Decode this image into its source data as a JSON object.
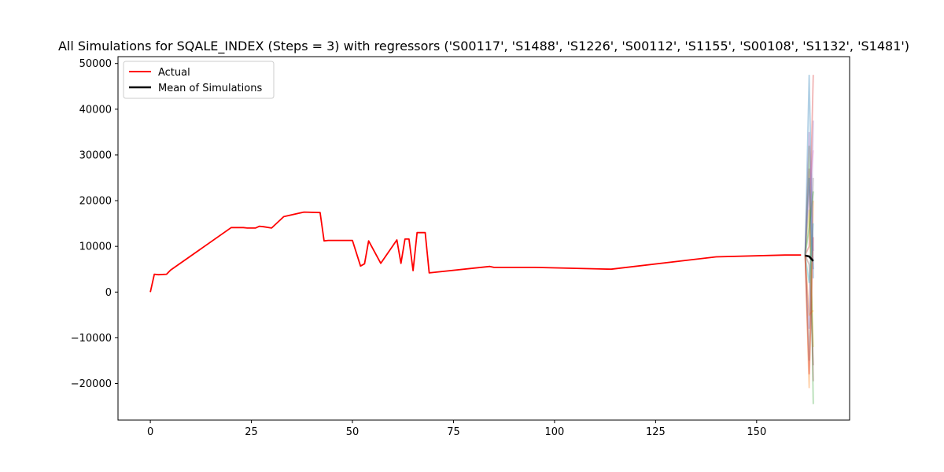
{
  "chart_data": {
    "type": "line",
    "title": "All Simulations for SQALE_INDEX (Steps = 3) with regressors ('S00117', 'S1488', 'S1226', 'S00112', 'S1155', 'S00108', 'S1132', 'S1481')",
    "xlabel": "",
    "ylabel": "",
    "xlim": [
      -8,
      173
    ],
    "ylim": [
      -28000,
      51500
    ],
    "x_ticks": [
      0,
      25,
      50,
      75,
      100,
      125,
      150
    ],
    "x_tick_labels": [
      "0",
      "25",
      "50",
      "75",
      "100",
      "125",
      "150"
    ],
    "y_ticks": [
      -20000,
      -10000,
      0,
      10000,
      20000,
      30000,
      40000,
      50000
    ],
    "y_tick_labels": [
      "−20000",
      "−10000",
      "0",
      "10000",
      "20000",
      "30000",
      "40000",
      "50000"
    ],
    "grid": false,
    "legend_placement": "top-left",
    "legend": [
      "Actual",
      "Mean of Simulations"
    ],
    "colors": {
      "actual": "#ff0000",
      "mean": "#000000",
      "simulations": [
        "#1f77b4",
        "#ff7f0e",
        "#2ca02c",
        "#d62728",
        "#9467bd",
        "#8c564b",
        "#e377c2",
        "#7f7f7f",
        "#bcbd22",
        "#17becf"
      ]
    },
    "series": [
      {
        "name": "Actual",
        "x": [
          0,
          1,
          2,
          4,
          5,
          20,
          23,
          24,
          26,
          27,
          28,
          30,
          33,
          38,
          42,
          43,
          44,
          50,
          52,
          53,
          54,
          57,
          61,
          62,
          63,
          64,
          65,
          66,
          67,
          68,
          69,
          84,
          85,
          95,
          114,
          140,
          157,
          161
        ],
        "y": [
          0,
          3900,
          3800,
          3900,
          4800,
          14100,
          14100,
          14000,
          14000,
          14400,
          14300,
          14000,
          16500,
          17500,
          17400,
          11200,
          11300,
          11300,
          5700,
          6200,
          11200,
          6300,
          11400,
          6300,
          11600,
          11600,
          4700,
          13000,
          13000,
          13000,
          4200,
          5600,
          5400,
          5400,
          5000,
          7700,
          8100,
          8100
        ]
      },
      {
        "name": "Mean of Simulations",
        "x": [
          162,
          163,
          164
        ],
        "y": [
          8000,
          7800,
          6800
        ]
      }
    ],
    "simulations": [
      {
        "x": [
          162,
          163,
          164
        ],
        "y": [
          8100,
          47500,
          3000
        ]
      },
      {
        "x": [
          162,
          163,
          164
        ],
        "y": [
          8100,
          -21000,
          20000
        ]
      },
      {
        "x": [
          162,
          163,
          164
        ],
        "y": [
          8100,
          32000,
          -24500
        ]
      },
      {
        "x": [
          162,
          163,
          164
        ],
        "y": [
          8100,
          10000,
          47500
        ]
      },
      {
        "x": [
          162,
          163,
          164
        ],
        "y": [
          8100,
          -8000,
          37500
        ]
      },
      {
        "x": [
          162,
          163,
          164
        ],
        "y": [
          8100,
          27000,
          -19500
        ]
      },
      {
        "x": [
          162,
          163,
          164
        ],
        "y": [
          8100,
          22000,
          31000
        ]
      },
      {
        "x": [
          162,
          163,
          164
        ],
        "y": [
          8100,
          -15000,
          25000
        ]
      },
      {
        "x": [
          162,
          163,
          164
        ],
        "y": [
          8100,
          18000,
          -12000
        ]
      },
      {
        "x": [
          162,
          163,
          164
        ],
        "y": [
          8100,
          2000,
          15000
        ]
      },
      {
        "x": [
          162,
          163,
          164
        ],
        "y": [
          8100,
          25000,
          5000
        ]
      },
      {
        "x": [
          162,
          163,
          164
        ],
        "y": [
          8100,
          -5000,
          -4000
        ]
      },
      {
        "x": [
          162,
          163,
          164
        ],
        "y": [
          8100,
          14000,
          22000
        ]
      },
      {
        "x": [
          162,
          163,
          164
        ],
        "y": [
          8100,
          -18000,
          12000
        ]
      },
      {
        "x": [
          162,
          163,
          164
        ],
        "y": [
          8100,
          35000,
          9000
        ]
      },
      {
        "x": [
          162,
          163,
          164
        ],
        "y": [
          8100,
          6000,
          -16000
        ]
      }
    ]
  }
}
